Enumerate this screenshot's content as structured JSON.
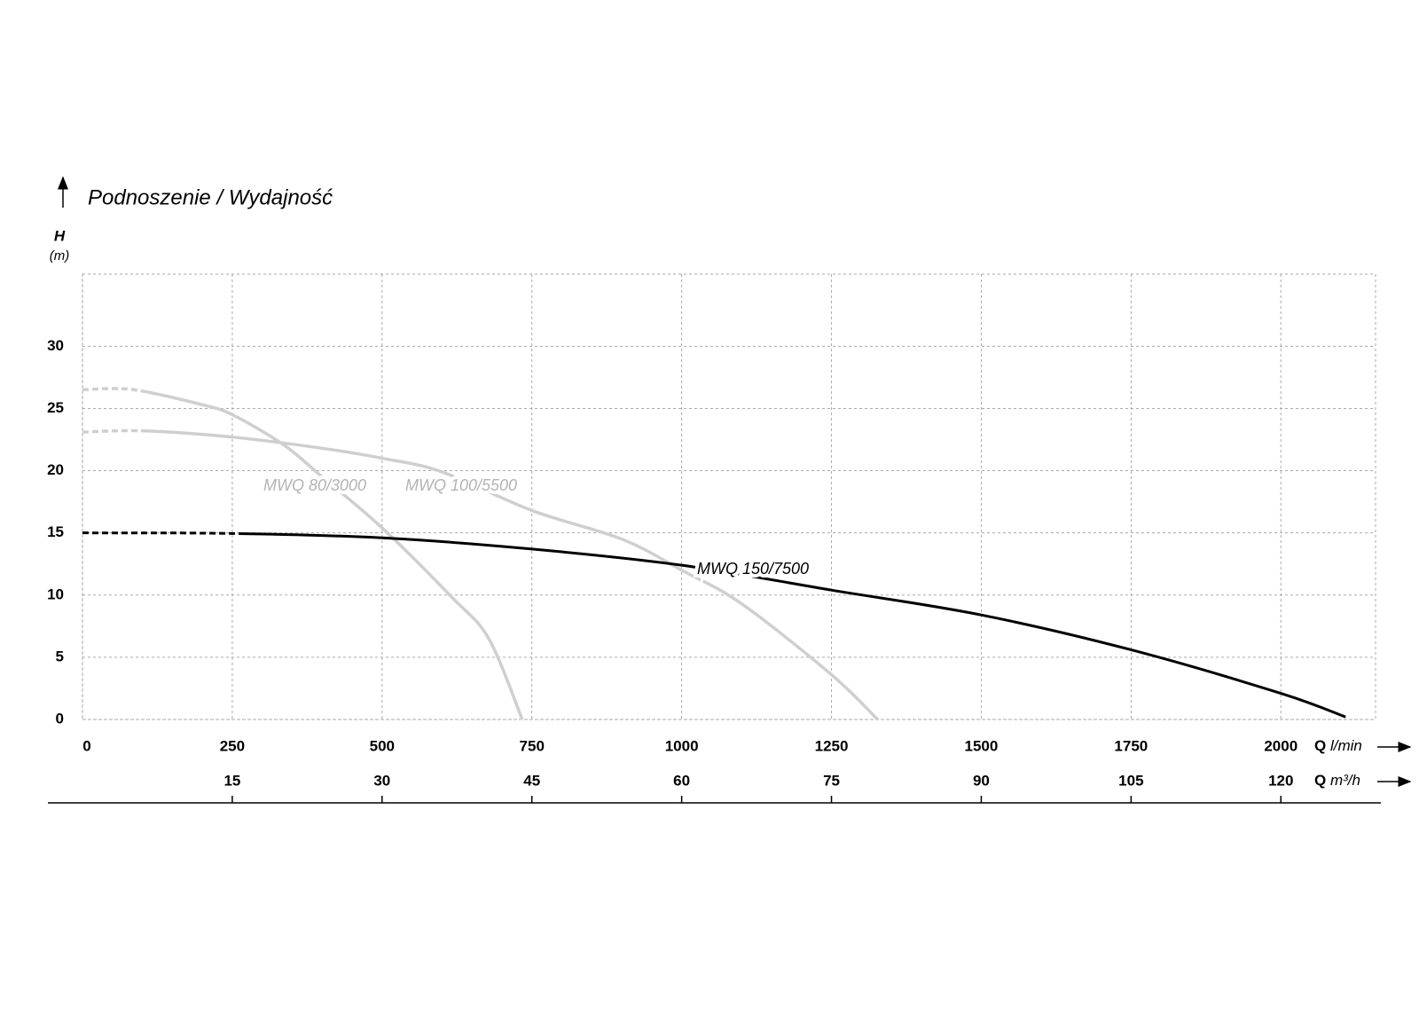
{
  "chart_data": {
    "type": "line",
    "title": "Podnoszenie / Wydajność",
    "ylabel": {
      "symbol": "H",
      "unit": "(m)"
    },
    "xlabel": {
      "symbol": "Q",
      "unit": "l/min"
    },
    "x2label": {
      "symbol": "Q",
      "unit": "m³/h"
    },
    "xlim": [
      0,
      2158
    ],
    "xticks": [
      0,
      250,
      500,
      750,
      1000,
      1250,
      1500,
      1750,
      2000
    ],
    "x2lim": [
      0,
      129.48
    ],
    "x2ticks": [
      15,
      30,
      45,
      60,
      75,
      90,
      105,
      120
    ],
    "ylim": [
      0,
      35.8
    ],
    "yticks": [
      0,
      5,
      10,
      15,
      20,
      25,
      30
    ],
    "grid": true,
    "series": [
      {
        "name": "MWQ 80/3000",
        "color": "#cfcfcf",
        "label_color": "#b3b3b3",
        "dashed_to": 100,
        "x": [
          0,
          50,
          100,
          200,
          250,
          335,
          400,
          500,
          617,
          678,
          734
        ],
        "values": [
          26.5,
          26.6,
          26.4,
          25.3,
          24.5,
          22.1,
          19.5,
          15.4,
          9.8,
          6.5,
          0
        ]
      },
      {
        "name": "MWQ 100/5500",
        "color": "#cfcfcf",
        "label_color": "#b3b3b3",
        "dashed_to": 100,
        "x": [
          0,
          100,
          250,
          400,
          500,
          600,
          750,
          900,
          1000,
          1100,
          1250,
          1327
        ],
        "values": [
          23.1,
          23.2,
          22.7,
          21.8,
          21.0,
          19.9,
          16.8,
          14.5,
          12.0,
          9.3,
          3.6,
          0
        ]
      },
      {
        "name": "MWQ 150/7500",
        "color": "#000000",
        "label_color": "#000000",
        "dashed_to": 270,
        "x": [
          0,
          250,
          500,
          750,
          1000,
          1250,
          1500,
          1750,
          2000,
          2108
        ],
        "values": [
          15.0,
          14.95,
          14.6,
          13.7,
          12.4,
          10.4,
          8.4,
          5.6,
          2.1,
          0.2
        ]
      }
    ]
  }
}
